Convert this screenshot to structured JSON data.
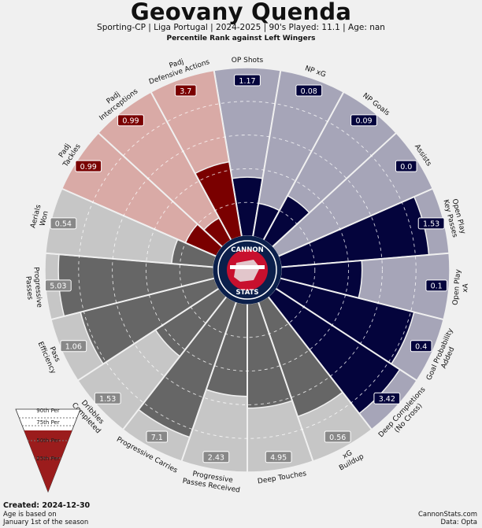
{
  "header": {
    "title": "Geovany Quenda",
    "subtitle": "Sporting-CP  | Liga Portugal | 2024-2025 | 90's Played: 11.1 | Age: nan",
    "rank_title": "Percentile Rank against Left Wingers"
  },
  "footer": {
    "created": "Created: 2024-12-30",
    "age_note_1": "Age is based on",
    "age_note_2": "January 1st of the season",
    "site": "CannonStats.com",
    "source": "Data: Opta"
  },
  "logo": {
    "top_text": "CANNON",
    "bottom_text": "STATS"
  },
  "legend": {
    "labels": [
      "90th Per",
      "75th Per",
      "50th Per",
      "25th Per"
    ],
    "fill_color": "#9b1c1c"
  },
  "colors": {
    "defending": "#7a0000",
    "defending_bg": "#d9aaa6",
    "attacking": "#04043c",
    "attacking_bg": "#a6a5b8",
    "possession": "#666666",
    "possession_bg": "#c6c6c6",
    "label_defending_box": "#7a0000",
    "label_attacking_box": "#04043c",
    "label_possession_box": "#888888"
  },
  "chart_data": {
    "type": "pizza",
    "title": "Percentile Rank against Left Wingers",
    "range": [
      0,
      100
    ],
    "slices": [
      {
        "label": "OP Shots",
        "value": "1.17",
        "group": "attacking",
        "percentile": 35
      },
      {
        "label": "NP xG",
        "value": "0.08",
        "group": "attacking",
        "percentile": 20
      },
      {
        "label": "NP Goals",
        "value": "0.09",
        "group": "attacking",
        "percentile": 30
      },
      {
        "label": "Assists",
        "value": "0.0",
        "group": "attacking",
        "percentile": 0
      },
      {
        "label": "Open Play\nKey Passes",
        "value": "1.53",
        "group": "attacking",
        "percentile": 88
      },
      {
        "label": "Open Play\nxA",
        "value": "0.1",
        "group": "attacking",
        "percentile": 48
      },
      {
        "label": "Goal Probability\nAdded",
        "value": "0.4",
        "group": "attacking",
        "percentile": 82
      },
      {
        "label": "Deep Completions\n(No Cross)",
        "value": "3.42",
        "group": "attacking",
        "percentile": 88
      },
      {
        "label": "xG\nBuildup",
        "value": "0.56",
        "group": "possession",
        "percentile": 72
      },
      {
        "label": "Deep Touches",
        "value": "4.95",
        "group": "possession",
        "percentile": 62
      },
      {
        "label": "Progressive\nPasses Received",
        "value": "2.43",
        "group": "possession",
        "percentile": 55
      },
      {
        "label": "Progressive Carries",
        "value": "7.1",
        "group": "possession",
        "percentile": 85
      },
      {
        "label": "Dribbles\nCompleted",
        "value": "1.53",
        "group": "possession",
        "percentile": 45
      },
      {
        "label": "Pass\nEfficiency",
        "value": "1.06",
        "group": "possession",
        "percentile": 82
      },
      {
        "label": "Progressive\nPasses",
        "value": "5.03",
        "group": "possession",
        "percentile": 92
      },
      {
        "label": "Aerials\nWon",
        "value": "0.54",
        "group": "possession",
        "percentile": 25
      },
      {
        "label": "Padj\nTackles",
        "value": "0.99",
        "group": "defending",
        "percentile": 20
      },
      {
        "label": "Padj\nInterceptions",
        "value": "0.99",
        "group": "defending",
        "percentile": 15
      },
      {
        "label": "Padj\nDefensive Actions",
        "value": "3.7",
        "group": "defending",
        "percentile": 45
      }
    ]
  }
}
